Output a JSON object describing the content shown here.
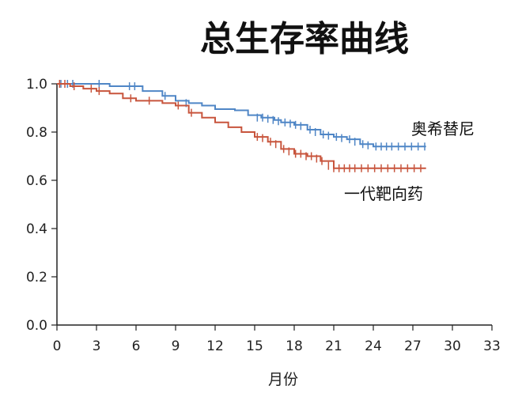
{
  "chart_data": {
    "type": "line",
    "title": "总生存率曲线",
    "xlabel": "月份",
    "ylabel": "",
    "xlim": [
      0,
      33
    ],
    "ylim": [
      0,
      1.0
    ],
    "xticks": [
      0,
      3,
      6,
      9,
      12,
      15,
      18,
      21,
      24,
      27,
      30,
      33
    ],
    "yticks": [
      "0.0",
      "0.2",
      "0.4",
      "0.6",
      "0.8",
      "1.0"
    ],
    "grid": false,
    "series": [
      {
        "name": "奥希替尼",
        "color": "#4f86c6",
        "points": [
          [
            0,
            1.0
          ],
          [
            0.5,
            1.0
          ],
          [
            3.5,
            1.0
          ],
          [
            4.0,
            0.99
          ],
          [
            6.0,
            0.99
          ],
          [
            6.5,
            0.97
          ],
          [
            8.0,
            0.95
          ],
          [
            9.0,
            0.93
          ],
          [
            10.0,
            0.92
          ],
          [
            11.0,
            0.91
          ],
          [
            12.0,
            0.895
          ],
          [
            13.5,
            0.89
          ],
          [
            14.5,
            0.87
          ],
          [
            15.5,
            0.86
          ],
          [
            16.5,
            0.85
          ],
          [
            17.0,
            0.84
          ],
          [
            18.0,
            0.83
          ],
          [
            19.0,
            0.81
          ],
          [
            20.0,
            0.79
          ],
          [
            21.0,
            0.78
          ],
          [
            22.0,
            0.77
          ],
          [
            23.0,
            0.75
          ],
          [
            24.0,
            0.74
          ],
          [
            28.0,
            0.74
          ]
        ],
        "censors": [
          [
            0.3,
            1.0
          ],
          [
            0.8,
            1.0
          ],
          [
            1.2,
            1.0
          ],
          [
            3.2,
            1.0
          ],
          [
            5.5,
            0.99
          ],
          [
            5.9,
            0.99
          ],
          [
            8.2,
            0.95
          ],
          [
            9.8,
            0.92
          ],
          [
            15.2,
            0.86
          ],
          [
            15.6,
            0.86
          ],
          [
            16.0,
            0.855
          ],
          [
            16.4,
            0.85
          ],
          [
            16.8,
            0.845
          ],
          [
            17.3,
            0.84
          ],
          [
            17.7,
            0.835
          ],
          [
            18.1,
            0.83
          ],
          [
            18.5,
            0.825
          ],
          [
            19.2,
            0.81
          ],
          [
            19.6,
            0.8
          ],
          [
            20.2,
            0.79
          ],
          [
            20.6,
            0.785
          ],
          [
            21.2,
            0.78
          ],
          [
            21.6,
            0.775
          ],
          [
            22.2,
            0.77
          ],
          [
            22.6,
            0.76
          ],
          [
            23.2,
            0.75
          ],
          [
            23.6,
            0.745
          ],
          [
            24.2,
            0.74
          ],
          [
            24.6,
            0.74
          ],
          [
            25.0,
            0.74
          ],
          [
            25.4,
            0.74
          ],
          [
            25.9,
            0.74
          ],
          [
            26.4,
            0.74
          ],
          [
            26.9,
            0.74
          ],
          [
            27.4,
            0.74
          ],
          [
            27.9,
            0.74
          ]
        ]
      },
      {
        "name": "一代靶向药",
        "color": "#c8553d",
        "points": [
          [
            0,
            1.0
          ],
          [
            1.0,
            0.99
          ],
          [
            2.0,
            0.98
          ],
          [
            3.0,
            0.97
          ],
          [
            4.0,
            0.96
          ],
          [
            5.0,
            0.94
          ],
          [
            6.0,
            0.93
          ],
          [
            7.0,
            0.93
          ],
          [
            8.0,
            0.92
          ],
          [
            9.0,
            0.91
          ],
          [
            10.0,
            0.88
          ],
          [
            11.0,
            0.86
          ],
          [
            12.0,
            0.84
          ],
          [
            13.0,
            0.82
          ],
          [
            14.0,
            0.8
          ],
          [
            15.0,
            0.78
          ],
          [
            16.0,
            0.76
          ],
          [
            17.0,
            0.73
          ],
          [
            18.0,
            0.71
          ],
          [
            19.0,
            0.7
          ],
          [
            20.0,
            0.68
          ],
          [
            21.0,
            0.65
          ],
          [
            23.0,
            0.65
          ],
          [
            28.0,
            0.65
          ]
        ],
        "censors": [
          [
            0.2,
            1.0
          ],
          [
            0.6,
            1.0
          ],
          [
            1.3,
            0.99
          ],
          [
            2.6,
            0.98
          ],
          [
            3.2,
            0.97
          ],
          [
            5.6,
            0.94
          ],
          [
            7.0,
            0.93
          ],
          [
            9.2,
            0.91
          ],
          [
            10.2,
            0.88
          ],
          [
            15.2,
            0.78
          ],
          [
            15.6,
            0.775
          ],
          [
            16.2,
            0.76
          ],
          [
            16.6,
            0.75
          ],
          [
            17.2,
            0.73
          ],
          [
            17.6,
            0.72
          ],
          [
            18.1,
            0.71
          ],
          [
            18.5,
            0.71
          ],
          [
            18.9,
            0.7
          ],
          [
            19.3,
            0.7
          ],
          [
            19.7,
            0.69
          ],
          [
            20.1,
            0.68
          ],
          [
            20.6,
            0.66
          ],
          [
            21.0,
            0.65
          ],
          [
            21.4,
            0.65
          ],
          [
            21.8,
            0.65
          ],
          [
            22.2,
            0.65
          ],
          [
            22.6,
            0.65
          ],
          [
            23.1,
            0.65
          ],
          [
            23.6,
            0.65
          ],
          [
            24.1,
            0.65
          ],
          [
            24.6,
            0.65
          ],
          [
            25.1,
            0.65
          ],
          [
            25.6,
            0.65
          ],
          [
            26.1,
            0.65
          ],
          [
            26.6,
            0.65
          ],
          [
            27.1,
            0.65
          ],
          [
            27.6,
            0.65
          ]
        ]
      }
    ]
  }
}
